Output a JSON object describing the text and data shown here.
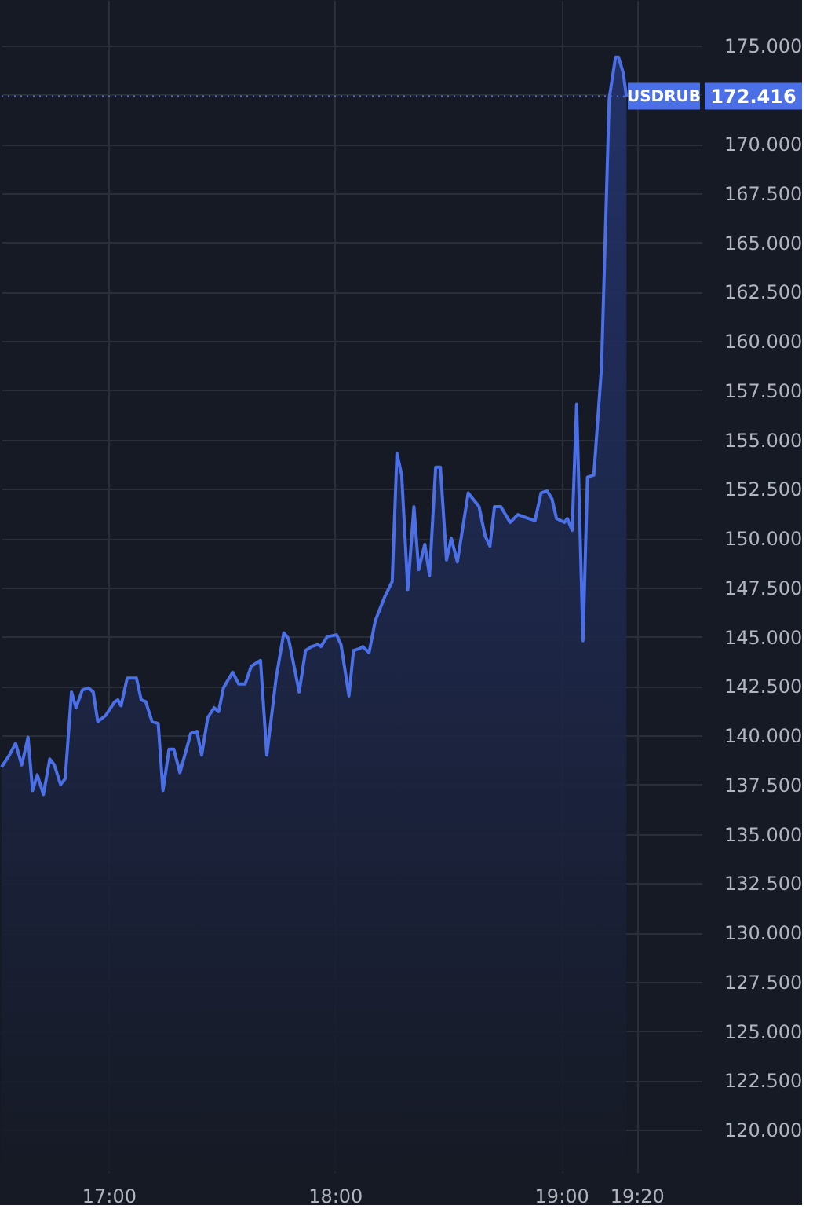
{
  "chart_data": {
    "type": "area",
    "x": [
      16.527,
      16.562,
      16.589,
      16.616,
      16.644,
      16.664,
      16.685,
      16.712,
      16.74,
      16.76,
      16.788,
      16.808,
      16.836,
      16.856,
      16.884,
      16.911,
      16.932,
      16.952,
      16.986,
      17.027,
      17.041,
      17.055,
      17.082,
      17.123,
      17.144,
      17.164,
      17.192,
      17.219,
      17.24,
      17.267,
      17.288,
      17.315,
      17.363,
      17.39,
      17.411,
      17.438,
      17.466,
      17.486,
      17.507,
      17.548,
      17.575,
      17.603,
      17.63,
      17.671,
      17.699,
      17.74,
      17.774,
      17.795,
      17.842,
      17.87,
      17.897,
      17.925,
      17.938,
      17.966,
      18.007,
      18.027,
      18.062,
      18.082,
      18.11,
      18.123,
      18.151,
      18.178,
      18.219,
      18.253,
      18.274,
      18.295,
      18.322,
      18.349,
      18.37,
      18.397,
      18.418,
      18.445,
      18.466,
      18.493,
      18.514,
      18.541,
      18.589,
      18.637,
      18.664,
      18.685,
      18.705,
      18.733,
      18.774,
      18.808,
      18.856,
      18.884,
      18.911,
      18.938,
      18.959,
      18.979,
      19.014,
      19.027,
      19.048,
      19.068,
      19.096,
      19.116,
      19.144,
      19.178,
      19.212,
      19.24,
      19.253,
      19.274,
      19.288
    ],
    "series": [
      {
        "name": "USDRUB",
        "color": "#4b6fe6",
        "values": [
          138.4,
          139.0,
          139.6,
          138.5,
          139.9,
          137.2,
          138.0,
          137.0,
          138.8,
          138.5,
          137.5,
          137.8,
          142.2,
          141.4,
          142.3,
          142.4,
          142.2,
          140.7,
          141.0,
          141.7,
          141.8,
          141.5,
          142.9,
          142.9,
          141.8,
          141.7,
          140.7,
          140.6,
          137.2,
          139.3,
          139.3,
          138.1,
          140.1,
          140.2,
          139.0,
          140.9,
          141.4,
          141.2,
          142.4,
          143.2,
          142.6,
          142.6,
          143.5,
          143.8,
          139.0,
          142.9,
          145.2,
          144.9,
          142.2,
          144.3,
          144.5,
          144.6,
          144.5,
          145.0,
          145.1,
          144.6,
          142.0,
          144.3,
          144.4,
          144.5,
          144.2,
          145.8,
          147.0,
          147.8,
          154.3,
          153.2,
          147.4,
          151.6,
          148.4,
          149.7,
          148.1,
          153.6,
          153.6,
          148.9,
          150.0,
          148.8,
          152.3,
          151.6,
          150.1,
          149.6,
          151.6,
          151.6,
          150.8,
          151.2,
          151.0,
          150.9,
          152.3,
          152.4,
          152.0,
          151.0,
          150.8,
          151.0,
          150.4,
          156.8,
          144.8,
          153.1,
          153.2,
          158.7,
          172.3,
          174.4,
          174.4,
          173.6,
          172.4
        ]
      }
    ],
    "xlim": [
      16.527,
      19.62
    ],
    "xticks": [
      {
        "value": 17,
        "label": "17:00"
      },
      {
        "value": 18,
        "label": "18:00"
      },
      {
        "value": 19,
        "label": "19:00"
      },
      {
        "value": 19.333,
        "label": "19:20"
      }
    ],
    "ylim": [
      117.85,
      177.3
    ],
    "yticks": [
      {
        "value": 120,
        "label": "120.000"
      },
      {
        "value": 122.5,
        "label": "122.500"
      },
      {
        "value": 125,
        "label": "125.000"
      },
      {
        "value": 127.5,
        "label": "127.500"
      },
      {
        "value": 130,
        "label": "130.000"
      },
      {
        "value": 132.5,
        "label": "132.500"
      },
      {
        "value": 135,
        "label": "135.000"
      },
      {
        "value": 137.5,
        "label": "137.500"
      },
      {
        "value": 140,
        "label": "140.000"
      },
      {
        "value": 142.5,
        "label": "142.500"
      },
      {
        "value": 145,
        "label": "145.000"
      },
      {
        "value": 147.5,
        "label": "147.500"
      },
      {
        "value": 150,
        "label": "150.000"
      },
      {
        "value": 152.5,
        "label": "152.500"
      },
      {
        "value": 155,
        "label": "155.000"
      },
      {
        "value": 157.5,
        "label": "157.500"
      },
      {
        "value": 160,
        "label": "160.000"
      },
      {
        "value": 162.5,
        "label": "162.500"
      },
      {
        "value": 165,
        "label": "165.000"
      },
      {
        "value": 167.5,
        "label": "167.500"
      },
      {
        "value": 170,
        "label": "170.000"
      },
      {
        "value": 172.5,
        "label": null
      },
      {
        "value": 175,
        "label": "175.000"
      }
    ],
    "ref_lines": [
      {
        "axis": "y",
        "value": 172.416,
        "label": "172.416",
        "color": "#4b6fe6",
        "line_style": "dotted"
      }
    ],
    "grid": true
  }
}
